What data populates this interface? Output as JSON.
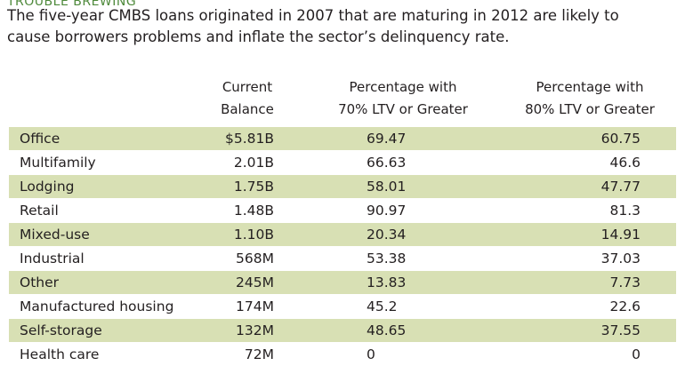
{
  "header": {
    "title": "TROUBLE BREWING",
    "subtitle": [
      "The five-year CMBS loans originated in 2007 that are maturing in 2012 are likely to",
      "cause borrowers problems and inflate the sector’s delinquency rate."
    ]
  },
  "table": {
    "columns": [
      [
        "Current",
        "Balance"
      ],
      [
        "Percentage with",
        "70% LTV or Greater"
      ],
      [
        "Percentage with",
        "80% LTV or Greater"
      ]
    ],
    "rows": [
      [
        "Office",
        "$5.81B",
        "69.47",
        "60.75"
      ],
      [
        "Multifamily",
        "2.01B",
        "66.63",
        "46.6"
      ],
      [
        "Lodging",
        "1.75B",
        "58.01",
        "47.77"
      ],
      [
        "Retail",
        "1.48B",
        "90.97",
        "81.3"
      ],
      [
        "Mixed-use",
        "1.10B",
        "20.34",
        "14.91"
      ],
      [
        "Industrial",
        "568M",
        "53.38",
        "37.03"
      ],
      [
        "Other",
        "245M",
        "13.83",
        "7.73"
      ],
      [
        "Manufactured housing",
        "174M",
        "45.2",
        "22.6"
      ],
      [
        "Self-storage",
        "132M",
        "48.65",
        "37.55"
      ],
      [
        "Health care",
        "72M",
        "0",
        "0"
      ]
    ]
  }
}
